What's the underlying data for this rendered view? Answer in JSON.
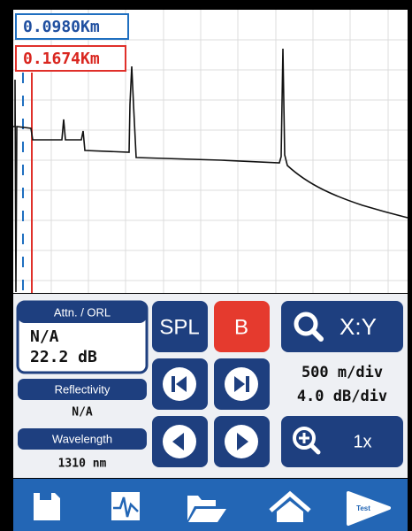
{
  "markers": {
    "a": "0.0980Km",
    "b": "0.1674Km"
  },
  "panel": {
    "attn_header": "Attn. / ORL",
    "attn_value": "N/A",
    "orl_value": "22.2 dB",
    "reflectivity_header": "Reflectivity",
    "reflectivity_value": "N/A",
    "wavelength_header": "Wavelength",
    "wavelength_value": "1310 nm"
  },
  "buttons": {
    "spl": "SPL",
    "b": "B",
    "xy": "X:Y",
    "zoom": "1x"
  },
  "scale": {
    "horizontal": "500 m/div",
    "vertical": "4.0 dB/div"
  },
  "toolbar": {
    "test": "Test"
  }
}
